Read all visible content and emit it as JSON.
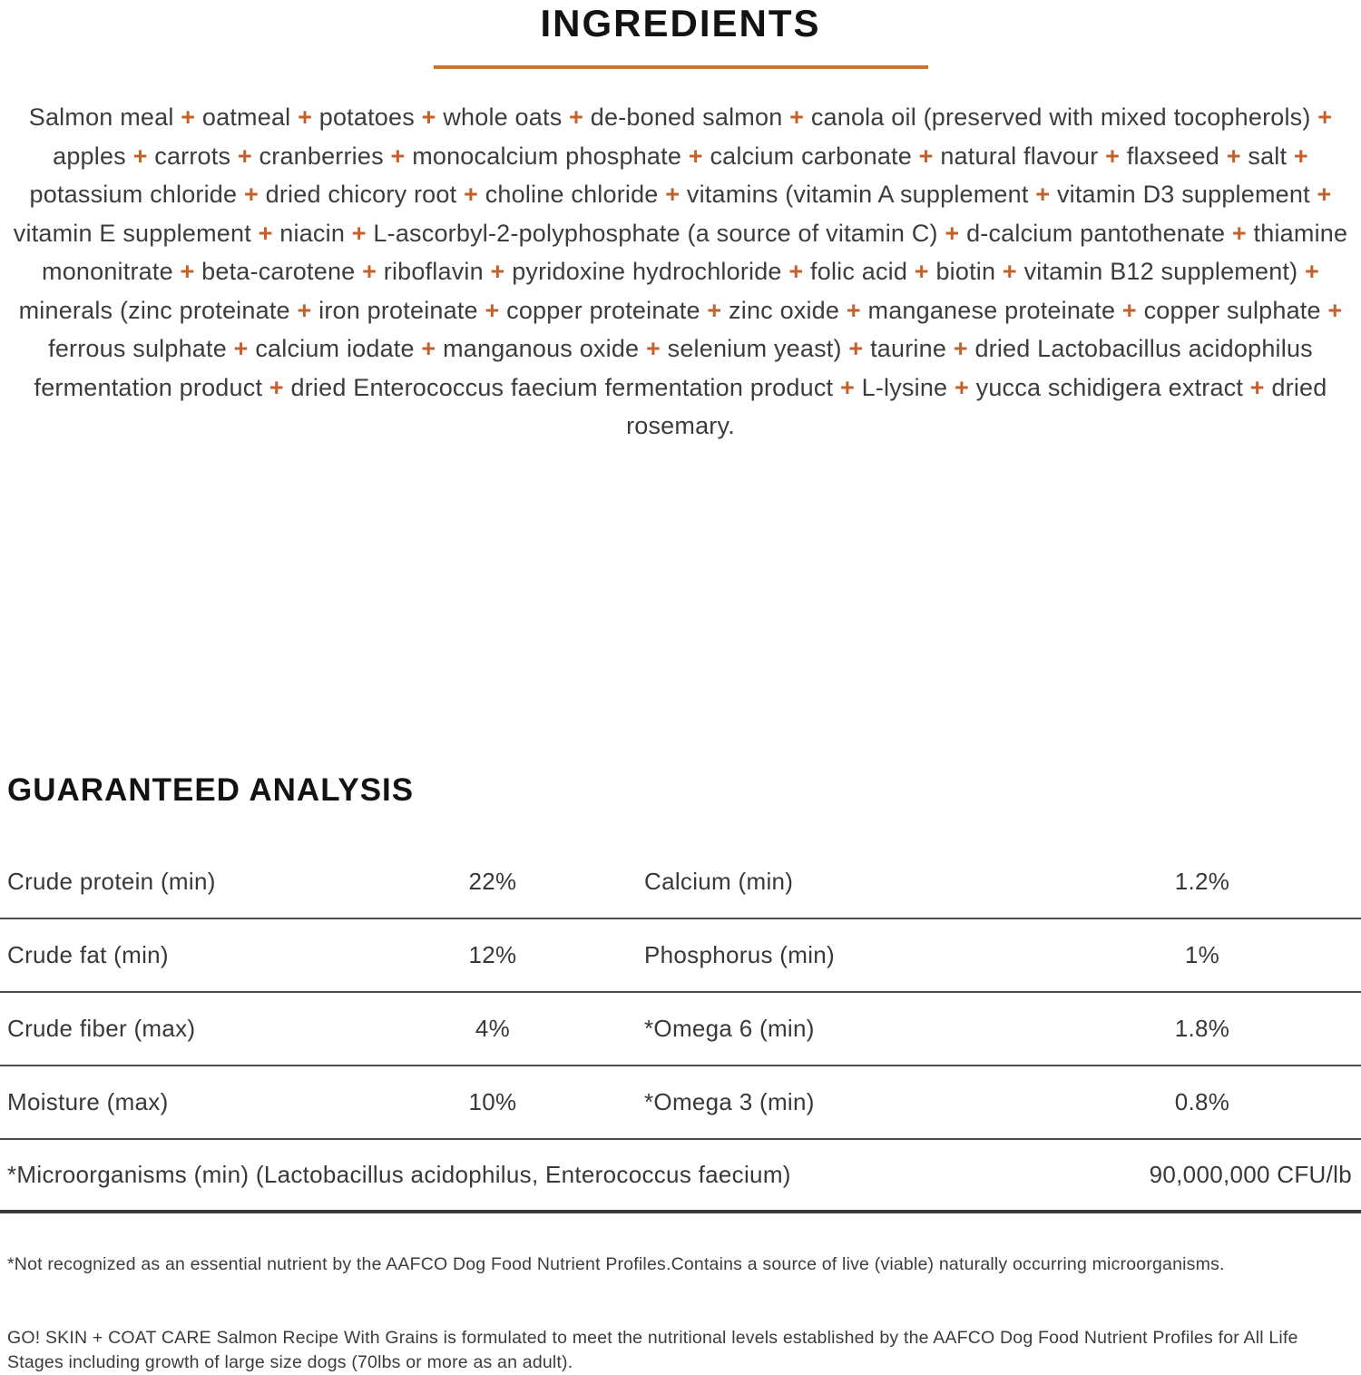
{
  "colors": {
    "accent_rule_orange": "#d2732a",
    "plus_orange": "#c6602b",
    "heading_text": "#131313",
    "body_text": "#3c3c3c",
    "row_divider": "#4b4b4b",
    "thick_divider": "#3a3a3a"
  },
  "ingredients": {
    "heading": "INGREDIENTS",
    "separator": "+",
    "items": [
      "Salmon meal",
      "oatmeal",
      "potatoes",
      "whole oats",
      "de-boned salmon",
      "canola oil (preserved with mixed tocopherols)",
      "apples",
      "carrots",
      "cranberries",
      "monocalcium phosphate",
      "calcium carbonate",
      "natural flavour",
      "flaxseed",
      "salt",
      "potassium chloride",
      "dried chicory root",
      "choline chloride",
      "vitamins (vitamin A supplement",
      "vitamin D3 supplement",
      "vitamin E supplement",
      "niacin",
      "L-ascorbyl-2-polyphosphate (a source of vitamin C)",
      "d-calcium pantothenate",
      "thiamine mononitrate",
      "beta-carotene",
      "riboflavin",
      "pyridoxine hydrochloride",
      "folic acid",
      "biotin",
      "vitamin B12 supplement)",
      "minerals (zinc proteinate",
      "iron proteinate",
      "copper proteinate",
      "zinc oxide",
      "manganese proteinate",
      "copper sulphate",
      "ferrous sulphate",
      "calcium iodate",
      "manganous oxide",
      "selenium yeast)",
      "taurine",
      "dried Lactobacillus acidophilus fermentation product",
      "dried Enterococcus faecium fermentation product",
      "L-lysine",
      "yucca schidigera extract",
      "dried rosemary."
    ]
  },
  "analysis": {
    "heading": "GUARANTEED ANALYSIS",
    "rows": [
      {
        "label1": "Crude protein (min)",
        "value1": "22%",
        "label2": "Calcium (min)",
        "value2": "1.2%"
      },
      {
        "label1": "Crude fat (min)",
        "value1": "12%",
        "label2": "Phosphorus (min)",
        "value2": "1%"
      },
      {
        "label1": "Crude fiber (max)",
        "value1": "4%",
        "label2": "*Omega 6 (min)",
        "value2": "1.8%"
      },
      {
        "label1": "Moisture (max)",
        "value1": "10%",
        "label2": "*Omega 3 (min)",
        "value2": "0.8%"
      }
    ],
    "full_row": {
      "label": "*Microorganisms (min) (Lactobacillus acidophilus, Enterococcus faecium)",
      "value": "90,000,000 CFU/lb"
    }
  },
  "footnotes": [
    "*Not recognized as an essential nutrient by the AAFCO Dog Food Nutrient Profiles.Contains a source of live (viable) naturally occurring microorganisms.",
    "GO! SKIN + COAT CARE Salmon Recipe With Grains is formulated to meet the nutritional levels established by the AAFCO Dog Food Nutrient Profiles for All Life Stages including growth of large size dogs (70lbs or more as an adult)."
  ]
}
